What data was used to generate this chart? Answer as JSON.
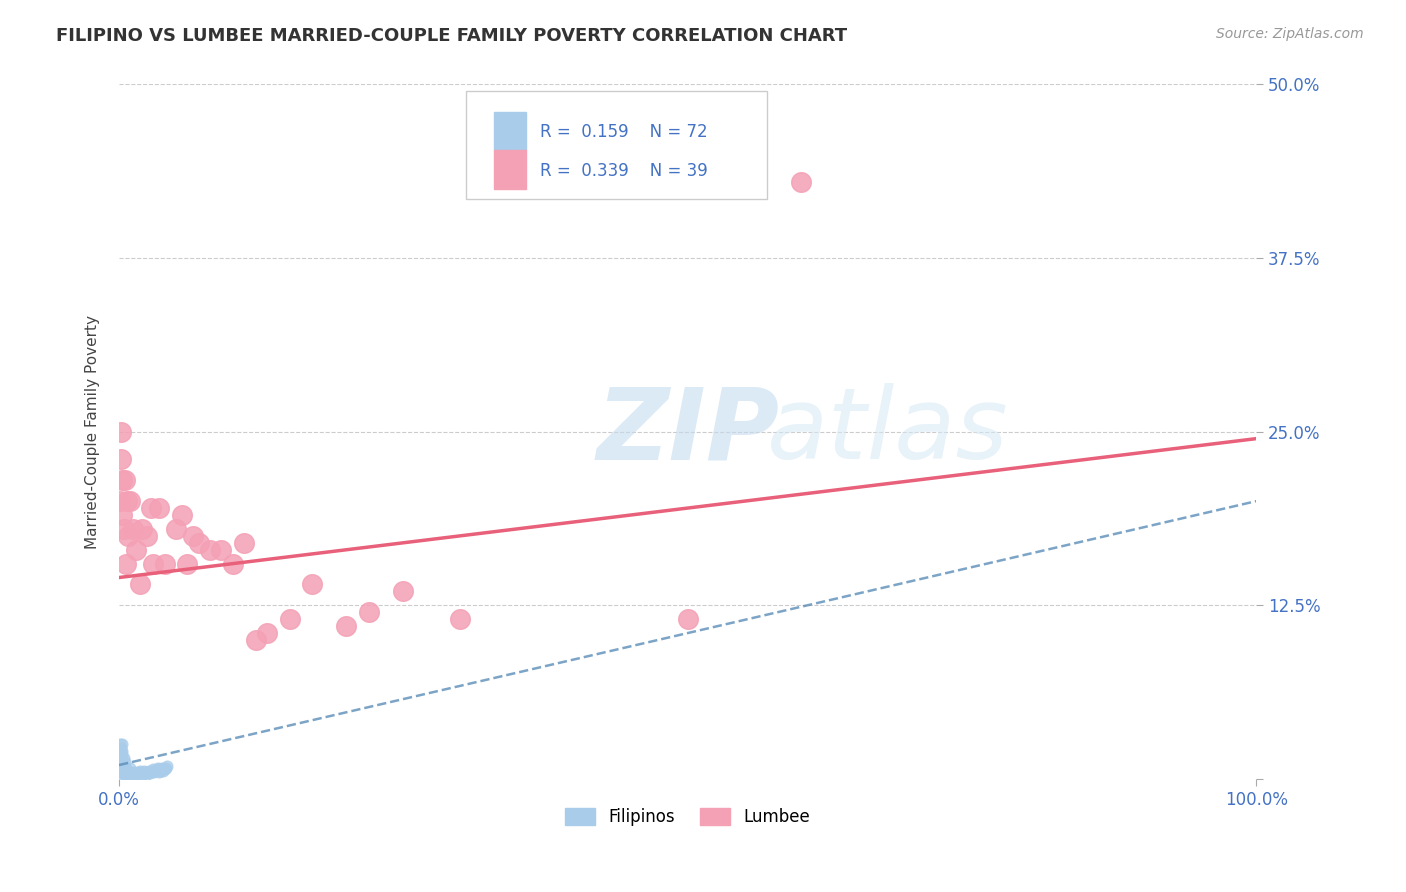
{
  "title": "FILIPINO VS LUMBEE MARRIED-COUPLE FAMILY POVERTY CORRELATION CHART",
  "source": "Source: ZipAtlas.com",
  "ylabel": "Married-Couple Family Poverty",
  "xlim": [
    0,
    1
  ],
  "ylim": [
    0,
    0.5
  ],
  "xticks": [
    0.0,
    1.0
  ],
  "xticklabels": [
    "0.0%",
    "100.0%"
  ],
  "yticks": [
    0.0,
    0.125,
    0.25,
    0.375,
    0.5
  ],
  "yticklabels": [
    "",
    "12.5%",
    "25.0%",
    "37.5%",
    "50.0%"
  ],
  "filipino_R": 0.159,
  "filipino_N": 72,
  "lumbee_R": 0.339,
  "lumbee_N": 39,
  "filipino_color": "#A8CCEA",
  "lumbee_color": "#F4A0B5",
  "filipino_line_color": "#5B8DB8",
  "lumbee_line_color": "#E8607A",
  "background_color": "#FFFFFF",
  "grid_color": "#CCCCCC",
  "watermark_zip": "ZIP",
  "watermark_atlas": "atlas",
  "legend_label_filipino": "Filipinos",
  "legend_label_lumbee": "Lumbee",
  "filipino_x": [
    0.001,
    0.001,
    0.001,
    0.001,
    0.002,
    0.002,
    0.002,
    0.002,
    0.002,
    0.002,
    0.002,
    0.003,
    0.003,
    0.003,
    0.003,
    0.003,
    0.003,
    0.003,
    0.003,
    0.003,
    0.004,
    0.004,
    0.004,
    0.004,
    0.004,
    0.005,
    0.005,
    0.005,
    0.005,
    0.006,
    0.006,
    0.006,
    0.007,
    0.007,
    0.008,
    0.008,
    0.009,
    0.01,
    0.01,
    0.01,
    0.011,
    0.012,
    0.013,
    0.014,
    0.015,
    0.016,
    0.017,
    0.018,
    0.019,
    0.02,
    0.021,
    0.022,
    0.023,
    0.024,
    0.025,
    0.026,
    0.027,
    0.028,
    0.029,
    0.03,
    0.031,
    0.032,
    0.033,
    0.034,
    0.035,
    0.036,
    0.037,
    0.038,
    0.039,
    0.04,
    0.041,
    0.042
  ],
  "filipino_y": [
    0.01,
    0.015,
    0.02,
    0.025,
    0.005,
    0.008,
    0.01,
    0.012,
    0.015,
    0.018,
    0.022,
    0.004,
    0.006,
    0.008,
    0.01,
    0.012,
    0.015,
    0.018,
    0.02,
    0.025,
    0.003,
    0.005,
    0.008,
    0.01,
    0.015,
    0.004,
    0.006,
    0.008,
    0.012,
    0.003,
    0.005,
    0.008,
    0.004,
    0.006,
    0.003,
    0.005,
    0.004,
    0.003,
    0.005,
    0.008,
    0.004,
    0.003,
    0.005,
    0.004,
    0.003,
    0.004,
    0.005,
    0.006,
    0.004,
    0.003,
    0.005,
    0.006,
    0.004,
    0.003,
    0.005,
    0.006,
    0.004,
    0.005,
    0.006,
    0.007,
    0.005,
    0.006,
    0.007,
    0.008,
    0.005,
    0.006,
    0.007,
    0.008,
    0.006,
    0.007,
    0.008,
    0.009
  ],
  "lumbee_x": [
    0.001,
    0.002,
    0.002,
    0.003,
    0.003,
    0.004,
    0.005,
    0.006,
    0.007,
    0.008,
    0.01,
    0.012,
    0.015,
    0.018,
    0.02,
    0.025,
    0.028,
    0.03,
    0.035,
    0.04,
    0.05,
    0.055,
    0.06,
    0.065,
    0.07,
    0.08,
    0.09,
    0.1,
    0.11,
    0.12,
    0.13,
    0.15,
    0.17,
    0.2,
    0.22,
    0.25,
    0.3,
    0.5,
    0.6
  ],
  "lumbee_y": [
    0.2,
    0.25,
    0.23,
    0.19,
    0.215,
    0.18,
    0.215,
    0.155,
    0.2,
    0.175,
    0.2,
    0.18,
    0.165,
    0.14,
    0.18,
    0.175,
    0.195,
    0.155,
    0.195,
    0.155,
    0.18,
    0.19,
    0.155,
    0.175,
    0.17,
    0.165,
    0.165,
    0.155,
    0.17,
    0.1,
    0.105,
    0.115,
    0.14,
    0.11,
    0.12,
    0.135,
    0.115,
    0.115,
    0.43
  ],
  "fil_trend_x0": 0.0,
  "fil_trend_y0": 0.01,
  "fil_trend_x1": 1.0,
  "fil_trend_y1": 0.2,
  "lum_trend_x0": 0.0,
  "lum_trend_y0": 0.145,
  "lum_trend_x1": 1.0,
  "lum_trend_y1": 0.245
}
